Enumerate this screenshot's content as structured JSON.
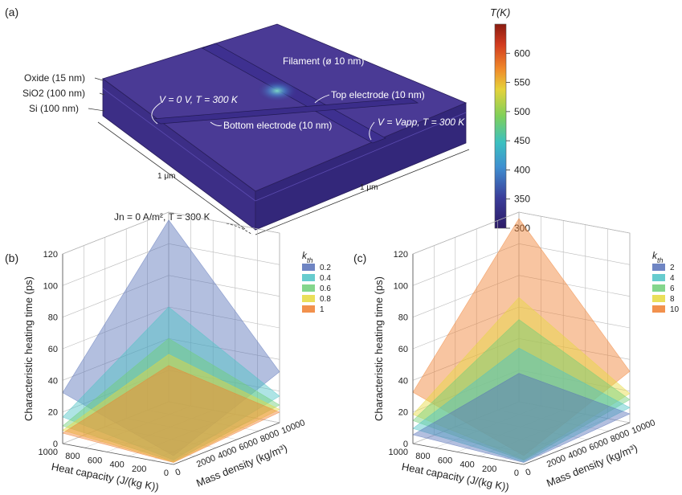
{
  "panel_a": {
    "label": "(a)",
    "layers": [
      "Oxide (15 nm)",
      "SiO2 (100 nm)",
      "Si (100 nm)"
    ],
    "annotations": {
      "filament": "Filament (ø 10 nm)",
      "v0": "V = 0 V, T = 300 K",
      "top_electrode": "Top electrode (10 nm)",
      "bottom_electrode": "Bottom electrode (10 nm)",
      "vapp": "V = Vapp, T = 300 K",
      "dim_left": "1 μm",
      "dim_right": "1 μm",
      "bc": "Jn = 0 A/m², T = 300 K"
    },
    "colorbar": {
      "title": "T(K)",
      "ticks": [
        300,
        350,
        400,
        450,
        500,
        550,
        600
      ],
      "range": [
        300,
        650
      ],
      "colors": [
        "#2c1a66",
        "#3a3d9a",
        "#3f8fd0",
        "#3bc0c0",
        "#7fd05a",
        "#e5d23a",
        "#f08a2a",
        "#d23b1f",
        "#8a1b10"
      ]
    }
  },
  "chart_data": [
    {
      "type": "surface",
      "panel_label": "(b)",
      "title": "",
      "xlabel": "Heat capacity (J/(kg K))",
      "ylabel": "Mass density (kg/m³)",
      "zlabel": "Characteristic heating time (ps)",
      "x_ticks": [
        0,
        200,
        400,
        600,
        800,
        1000
      ],
      "y_ticks": [
        0,
        2000,
        4000,
        6000,
        8000,
        10000
      ],
      "z_ticks": [
        0,
        20,
        40,
        60,
        80,
        100,
        120
      ],
      "xlim": [
        0,
        1000
      ],
      "ylim": [
        0,
        10000
      ],
      "zlim": [
        0,
        120
      ],
      "legend_title": "k_th",
      "legend_position": "top-right",
      "series": [
        {
          "name": "0.2",
          "color": "#5670b8",
          "max_value": 115
        },
        {
          "name": "0.4",
          "color": "#4cc3c6",
          "max_value": 60
        },
        {
          "name": "0.6",
          "color": "#6fcf78",
          "max_value": 40
        },
        {
          "name": "0.8",
          "color": "#e6d93d",
          "max_value": 30
        },
        {
          "name": "1",
          "color": "#f07e2e",
          "max_value": 23
        }
      ]
    },
    {
      "type": "surface",
      "panel_label": "(c)",
      "title": "",
      "xlabel": "Heat capacity (J/(kg K))",
      "ylabel": "Mass density (kg/m³)",
      "zlabel": "Characteristic heating time (ps)",
      "x_ticks": [
        0,
        200,
        400,
        600,
        800,
        1000
      ],
      "y_ticks": [
        0,
        2000,
        4000,
        6000,
        8000,
        10000
      ],
      "z_ticks": [
        0,
        20,
        40,
        60,
        80,
        100,
        120
      ],
      "xlim": [
        0,
        1000
      ],
      "ylim": [
        0,
        10000
      ],
      "zlim": [
        0,
        120
      ],
      "legend_title": "k_th",
      "legend_position": "top-right",
      "series": [
        {
          "name": "2",
          "color": "#5670b8",
          "max_value": 18
        },
        {
          "name": "4",
          "color": "#4cc3c6",
          "max_value": 34
        },
        {
          "name": "6",
          "color": "#6fcf78",
          "max_value": 52
        },
        {
          "name": "8",
          "color": "#e6d93d",
          "max_value": 66
        },
        {
          "name": "10",
          "color": "#f07e2e",
          "max_value": 116
        }
      ]
    }
  ]
}
